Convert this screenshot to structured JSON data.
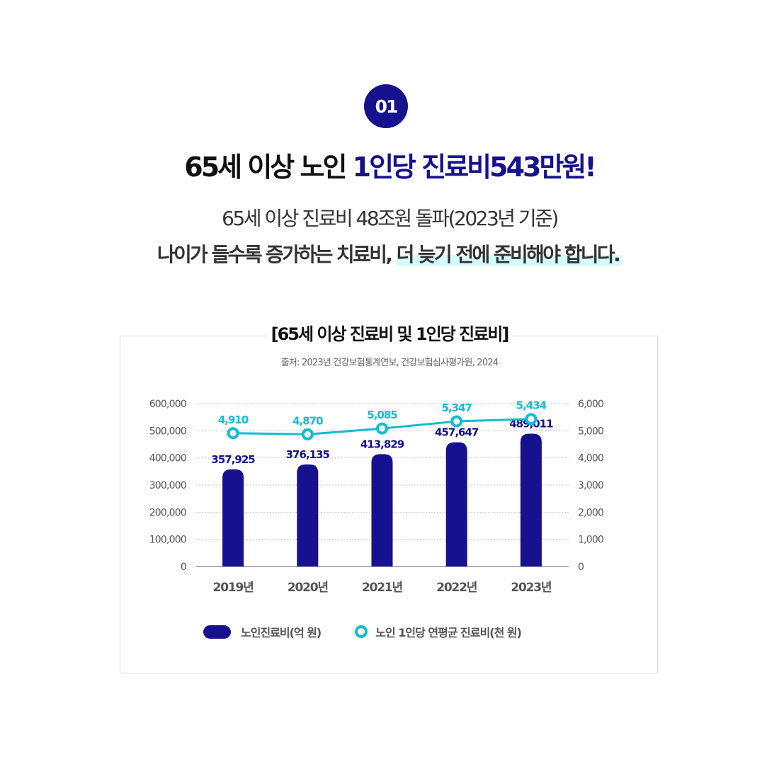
{
  "badge": {
    "label": "01"
  },
  "headline": {
    "part1": "65세 이상 노인 ",
    "accent": "1인당 진료비543만원!"
  },
  "subtitle": {
    "line1": "65세 이상 진료비 48조원 돌파(2023년 기준)",
    "line2_plain": "나이가 들수록 증가하는 치료비, ",
    "line2_highlight": "더 늦기 전에 준비해야 합니다."
  },
  "colors": {
    "brand": "#15118f",
    "line": "#11bcd4",
    "highlight": "#d6fafd"
  },
  "chart_data": {
    "type": "bar",
    "title": "[65세 이상 진료비 및 1인당 진료비]",
    "source": "출처: 2023년 건강보험통계연보, 건강보험심사평가원, 2024",
    "categories": [
      "2019년",
      "2020년",
      "2021년",
      "2022년",
      "2023년"
    ],
    "series": [
      {
        "name": "노인진료비(억 원)",
        "type": "bar",
        "axis": "left",
        "color": "#15118f",
        "values": [
          357925,
          376135,
          413829,
          457647,
          489011
        ],
        "labels": [
          "357,925",
          "376,135",
          "413,829",
          "457,647",
          "489,011"
        ]
      },
      {
        "name": "노인 1인당 연평균 진료비(천 원)",
        "type": "line",
        "axis": "right",
        "color": "#11bcd4",
        "values": [
          4910,
          4870,
          5085,
          5347,
          5434
        ],
        "labels": [
          "4,910",
          "4,870",
          "5,085",
          "5,347",
          "5,434"
        ]
      }
    ],
    "left_axis": {
      "ylim": [
        0,
        600000
      ],
      "ticks": [
        "0",
        "100,000",
        "200,000",
        "300,000",
        "400,000",
        "500,000",
        "600,000"
      ]
    },
    "right_axis": {
      "ylim": [
        0,
        6000
      ],
      "ticks": [
        "0",
        "1,000",
        "2,000",
        "3,000",
        "4,000",
        "5,000",
        "6,000"
      ]
    },
    "grid": true,
    "legend_position": "bottom"
  },
  "legend": {
    "bar_label": "노인진료비(억 원)",
    "line_label": "노인 1인당 연평균 진료비(천 원)"
  }
}
